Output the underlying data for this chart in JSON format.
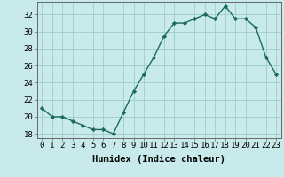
{
  "x": [
    0,
    1,
    2,
    3,
    4,
    5,
    6,
    7,
    8,
    9,
    10,
    11,
    12,
    13,
    14,
    15,
    16,
    17,
    18,
    19,
    20,
    21,
    22,
    23
  ],
  "y": [
    21.0,
    20.0,
    20.0,
    19.5,
    19.0,
    18.5,
    18.5,
    18.0,
    20.5,
    23.0,
    25.0,
    27.0,
    29.5,
    31.0,
    31.0,
    31.5,
    32.0,
    31.5,
    33.0,
    31.5,
    31.5,
    30.5,
    27.0,
    25.0
  ],
  "line_color": "#1a6b5a",
  "marker": "D",
  "marker_size": 2.2,
  "bg_color": "#c8eaea",
  "grid_color": "#a0cccc",
  "xlabel": "Humidex (Indice chaleur)",
  "xlim": [
    -0.5,
    23.5
  ],
  "ylim": [
    17.5,
    33.5
  ],
  "yticks": [
    18,
    20,
    22,
    24,
    26,
    28,
    30,
    32
  ],
  "xticks": [
    0,
    1,
    2,
    3,
    4,
    5,
    6,
    7,
    8,
    9,
    10,
    11,
    12,
    13,
    14,
    15,
    16,
    17,
    18,
    19,
    20,
    21,
    22,
    23
  ],
  "xlabel_fontsize": 7.5,
  "tick_fontsize": 6.5,
  "line_width": 1.0
}
